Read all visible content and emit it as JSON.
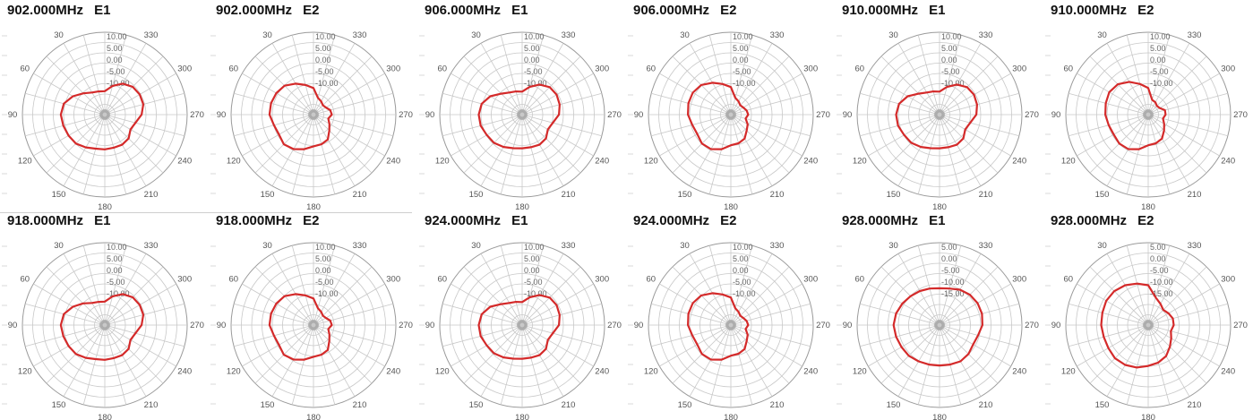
{
  "colors": {
    "trace": "#d42a2a",
    "grid": "#c8c8c8",
    "rings": "#9a9a9a",
    "text": "#555555"
  },
  "chart_data": [
    {
      "type": "polar",
      "title_freq": "902.000MHz",
      "title_pol": "E1",
      "r_labels": [
        "10.00",
        "5.00",
        "0.00",
        "-5.00",
        "-10.00"
      ],
      "angle_labels": [
        "30",
        "330",
        "60",
        "300",
        "90",
        "270",
        "120",
        "240",
        "150",
        "210",
        "180"
      ],
      "r_norm": [
        0.46,
        0.47,
        0.5,
        0.59,
        0.72,
        0.83,
        0.86,
        0.84,
        0.82,
        0.8,
        0.74,
        0.69,
        0.68,
        0.67,
        0.68,
        0.66,
        0.58,
        0.62,
        0.72,
        0.78,
        0.79,
        0.77,
        0.7,
        0.58
      ]
    },
    {
      "type": "polar",
      "title_freq": "902.000MHz",
      "title_pol": "E2",
      "r_labels": [
        "10.00",
        "5.00",
        "0.00",
        "-5.00",
        "-10.00"
      ],
      "angle_labels": [
        "30",
        "330",
        "60",
        "300",
        "90",
        "270",
        "120",
        "240",
        "150",
        "210",
        "180"
      ],
      "r_norm": [
        0.52,
        0.6,
        0.7,
        0.8,
        0.84,
        0.86,
        0.86,
        0.8,
        0.78,
        0.82,
        0.78,
        0.7,
        0.62,
        0.6,
        0.56,
        0.44,
        0.36,
        0.3,
        0.36,
        0.34,
        0.28,
        0.26,
        0.3,
        0.34
      ]
    },
    {
      "type": "polar",
      "title_freq": "906.000MHz",
      "title_pol": "E1",
      "r_labels": [
        "10.00",
        "5.00",
        "0.00",
        "-5.00",
        "-10.00"
      ],
      "angle_labels": [
        "30",
        "330",
        "60",
        "300",
        "90",
        "270",
        "120",
        "240",
        "150",
        "210",
        "180"
      ],
      "r_norm": [
        0.45,
        0.47,
        0.5,
        0.58,
        0.72,
        0.82,
        0.85,
        0.84,
        0.8,
        0.78,
        0.73,
        0.68,
        0.66,
        0.66,
        0.68,
        0.66,
        0.58,
        0.62,
        0.72,
        0.76,
        0.78,
        0.76,
        0.68,
        0.56
      ]
    },
    {
      "type": "polar",
      "title_freq": "906.000MHz",
      "title_pol": "E2",
      "r_labels": [
        "10.00",
        "5.00",
        "0.00",
        "-5.00",
        "-10.00"
      ],
      "angle_labels": [
        "30",
        "330",
        "60",
        "300",
        "90",
        "270",
        "120",
        "240",
        "150",
        "210",
        "180"
      ],
      "r_norm": [
        0.54,
        0.62,
        0.72,
        0.82,
        0.86,
        0.86,
        0.84,
        0.78,
        0.76,
        0.8,
        0.78,
        0.7,
        0.6,
        0.58,
        0.54,
        0.44,
        0.38,
        0.3,
        0.34,
        0.32,
        0.28,
        0.26,
        0.3,
        0.34
      ]
    },
    {
      "type": "polar",
      "title_freq": "910.000MHz",
      "title_pol": "E1",
      "r_labels": [
        "10.00",
        "5.00",
        "0.00",
        "-5.00",
        "-10.00"
      ],
      "angle_labels": [
        "30",
        "330",
        "60",
        "300",
        "90",
        "270",
        "120",
        "240",
        "150",
        "210",
        "180"
      ],
      "r_norm": [
        0.45,
        0.47,
        0.5,
        0.58,
        0.72,
        0.82,
        0.85,
        0.84,
        0.8,
        0.78,
        0.73,
        0.68,
        0.66,
        0.66,
        0.68,
        0.66,
        0.58,
        0.62,
        0.72,
        0.76,
        0.78,
        0.76,
        0.68,
        0.56
      ]
    },
    {
      "type": "polar",
      "title_freq": "910.000MHz",
      "title_pol": "E2",
      "r_labels": [
        "10.00",
        "5.00",
        "0.00",
        "-5.00",
        "-10.00"
      ],
      "angle_labels": [
        "30",
        "330",
        "60",
        "300",
        "90",
        "270",
        "120",
        "240",
        "150",
        "210",
        "180"
      ],
      "r_norm": [
        0.52,
        0.62,
        0.74,
        0.84,
        0.88,
        0.86,
        0.84,
        0.8,
        0.78,
        0.8,
        0.78,
        0.7,
        0.6,
        0.58,
        0.54,
        0.44,
        0.36,
        0.3,
        0.34,
        0.34,
        0.26,
        0.24,
        0.28,
        0.3
      ]
    },
    {
      "type": "polar",
      "title_freq": "918.000MHz",
      "title_pol": "E1",
      "r_labels": [
        "10.00",
        "5.00",
        "0.00",
        "-5.00",
        "-10.00"
      ],
      "angle_labels": [
        "30",
        "330",
        "60",
        "300",
        "90",
        "270",
        "120",
        "240",
        "150",
        "210",
        "180"
      ],
      "r_norm": [
        0.46,
        0.47,
        0.5,
        0.6,
        0.72,
        0.83,
        0.86,
        0.84,
        0.82,
        0.8,
        0.74,
        0.69,
        0.68,
        0.67,
        0.68,
        0.66,
        0.58,
        0.62,
        0.72,
        0.78,
        0.79,
        0.77,
        0.7,
        0.58
      ]
    },
    {
      "type": "polar",
      "title_freq": "918.000MHz",
      "title_pol": "E2",
      "r_labels": [
        "10.00",
        "5.00",
        "0.00",
        "-5.00",
        "-10.00"
      ],
      "angle_labels": [
        "30",
        "330",
        "60",
        "300",
        "90",
        "270",
        "120",
        "240",
        "150",
        "210",
        "180"
      ],
      "r_norm": [
        0.52,
        0.6,
        0.7,
        0.8,
        0.84,
        0.86,
        0.86,
        0.8,
        0.78,
        0.82,
        0.78,
        0.7,
        0.62,
        0.6,
        0.56,
        0.44,
        0.36,
        0.3,
        0.36,
        0.34,
        0.28,
        0.26,
        0.3,
        0.34
      ]
    },
    {
      "type": "polar",
      "title_freq": "924.000MHz",
      "title_pol": "E1",
      "r_labels": [
        "10.00",
        "5.00",
        "0.00",
        "-5.00",
        "-10.00"
      ],
      "angle_labels": [
        "30",
        "330",
        "60",
        "300",
        "90",
        "270",
        "120",
        "240",
        "150",
        "210",
        "180"
      ],
      "r_norm": [
        0.45,
        0.47,
        0.5,
        0.58,
        0.72,
        0.82,
        0.85,
        0.84,
        0.8,
        0.78,
        0.73,
        0.68,
        0.66,
        0.66,
        0.68,
        0.66,
        0.58,
        0.62,
        0.72,
        0.76,
        0.78,
        0.76,
        0.68,
        0.56
      ]
    },
    {
      "type": "polar",
      "title_freq": "924.000MHz",
      "title_pol": "E2",
      "r_labels": [
        "10.00",
        "5.00",
        "0.00",
        "-5.00",
        "-10.00"
      ],
      "angle_labels": [
        "30",
        "330",
        "60",
        "300",
        "90",
        "270",
        "120",
        "240",
        "150",
        "210",
        "180"
      ],
      "r_norm": [
        0.54,
        0.62,
        0.72,
        0.82,
        0.86,
        0.86,
        0.84,
        0.78,
        0.76,
        0.8,
        0.78,
        0.7,
        0.6,
        0.58,
        0.54,
        0.44,
        0.38,
        0.3,
        0.34,
        0.32,
        0.28,
        0.26,
        0.3,
        0.34
      ]
    },
    {
      "type": "polar",
      "title_freq": "928.000MHz",
      "title_pol": "E1",
      "r_labels": [
        "5.00",
        "0.00",
        "-5.00",
        "-10.00",
        "-15.00"
      ],
      "angle_labels": [
        "30",
        "330",
        "60",
        "300",
        "90",
        "270",
        "120",
        "240",
        "150",
        "210",
        "180"
      ],
      "r_norm": [
        0.72,
        0.74,
        0.77,
        0.8,
        0.84,
        0.88,
        0.9,
        0.88,
        0.86,
        0.85,
        0.82,
        0.8,
        0.79,
        0.8,
        0.82,
        0.8,
        0.76,
        0.78,
        0.84,
        0.86,
        0.86,
        0.84,
        0.8,
        0.74
      ]
    },
    {
      "type": "polar",
      "title_freq": "928.000MHz",
      "title_pol": "E2",
      "r_labels": [
        "5.00",
        "0.00",
        "-5.00",
        "-10.00",
        "-15.00"
      ],
      "angle_labels": [
        "30",
        "330",
        "60",
        "300",
        "90",
        "270",
        "120",
        "240",
        "150",
        "210",
        "180"
      ],
      "r_norm": [
        0.78,
        0.84,
        0.9,
        0.94,
        0.95,
        0.93,
        0.92,
        0.9,
        0.9,
        0.92,
        0.9,
        0.86,
        0.8,
        0.76,
        0.7,
        0.6,
        0.52,
        0.46,
        0.5,
        0.5,
        0.46,
        0.42,
        0.48,
        0.56
      ]
    }
  ]
}
